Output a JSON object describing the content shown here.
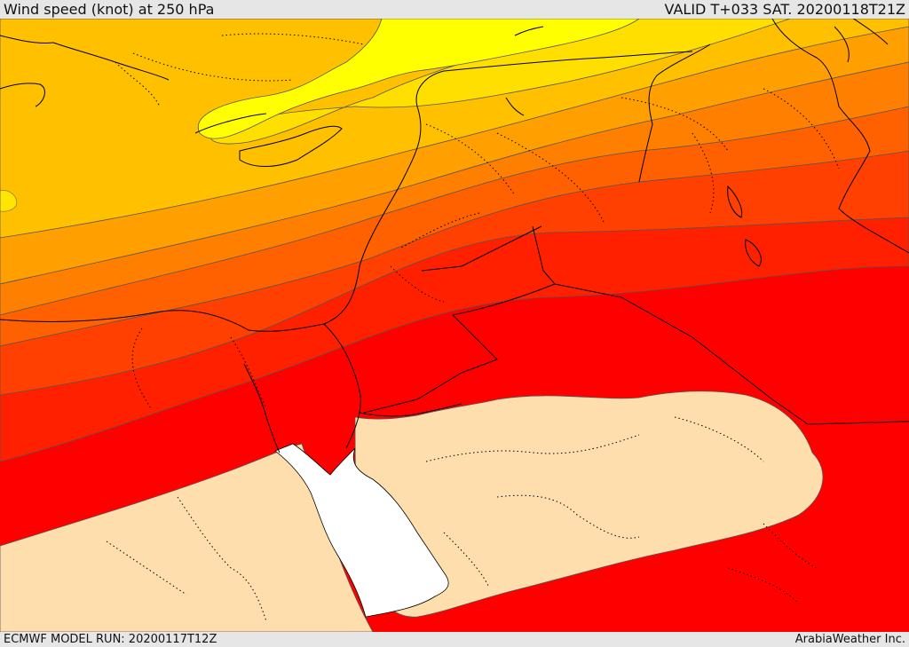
{
  "header": {
    "title": "Wind speed (knot) at 250 hPa",
    "valid": "VALID T+033 SAT. 20200118T21Z"
  },
  "footer": {
    "model_run": "ECMWF MODEL RUN: 20200117T12Z",
    "credit": "ArabiaWeather Inc."
  },
  "map": {
    "variable": "wind speed",
    "level_hpa": 250,
    "units": "knot",
    "color_bands": [
      "#ffff00",
      "#ffdf00",
      "#ffc000",
      "#ffa000",
      "#ff8000",
      "#ff6000",
      "#ff4000",
      "#ff2000",
      "#ff0000",
      "#ffdead",
      "#ffffff"
    ],
    "contour_color": "#555555",
    "coastline_color": "#000000"
  }
}
